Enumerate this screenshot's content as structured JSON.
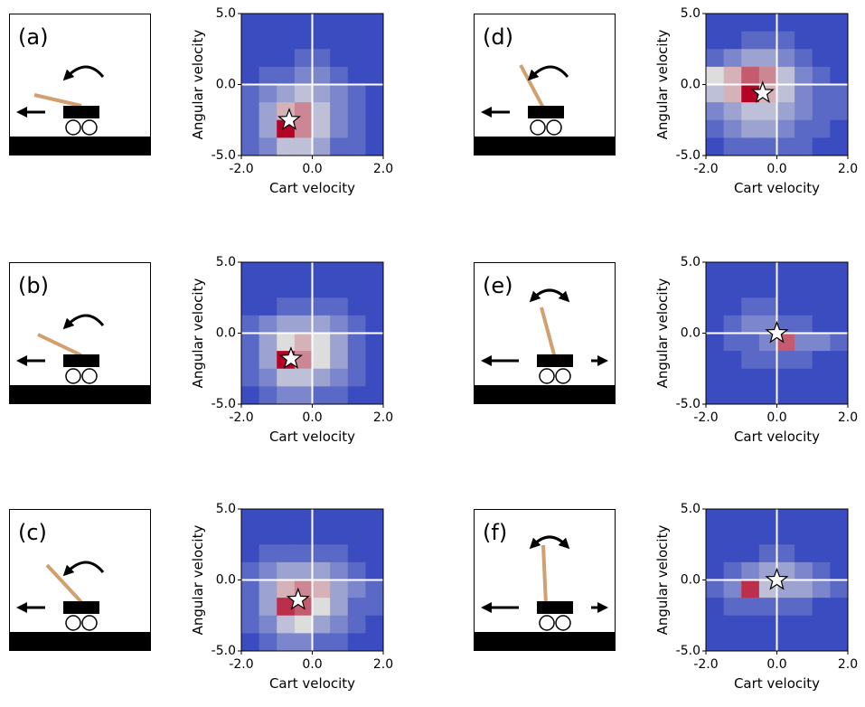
{
  "chart_data": [
    {
      "type": "heatmap",
      "panel_label": "(a)",
      "xlabel": "Cart velocity",
      "ylabel": "Angular velocity",
      "xlim": [
        -2,
        2
      ],
      "ylim": [
        -5,
        5
      ],
      "xticks": [
        {
          "value": -2,
          "label": "-2.0"
        },
        {
          "value": 0,
          "label": "0.0"
        },
        {
          "value": 2,
          "label": "2.0"
        }
      ],
      "yticks": [
        {
          "value": -5,
          "label": "-5.0"
        },
        {
          "value": 0,
          "label": "0.0"
        },
        {
          "value": 5,
          "label": "5.0"
        }
      ],
      "zlim": [
        0,
        10
      ],
      "colormap": [
        "#3b4cc0",
        "#dddddd",
        "#b40426"
      ],
      "z": [
        [
          0,
          0,
          0,
          0,
          0,
          0,
          0,
          0
        ],
        [
          0,
          0,
          0,
          0,
          0,
          0,
          0,
          0
        ],
        [
          0,
          0,
          0,
          1,
          1,
          0,
          0,
          0
        ],
        [
          0,
          1,
          1,
          2,
          2,
          1,
          0,
          0
        ],
        [
          1,
          2,
          3,
          4,
          3,
          2,
          1,
          0
        ],
        [
          1,
          3,
          6,
          7,
          4,
          2,
          1,
          0
        ],
        [
          1,
          3,
          10,
          7,
          4,
          2,
          1,
          0
        ],
        [
          1,
          2,
          4,
          4,
          3,
          1,
          1,
          0
        ]
      ],
      "marker": {
        "x": -0.65,
        "y": -2.5
      }
    },
    {
      "type": "heatmap",
      "panel_label": "(b)",
      "xlabel": "Cart velocity",
      "ylabel": "Angular velocity",
      "xlim": [
        -2,
        2
      ],
      "ylim": [
        -5,
        5
      ],
      "xticks": [
        {
          "value": -2,
          "label": "-2.0"
        },
        {
          "value": 0,
          "label": "0.0"
        },
        {
          "value": 2,
          "label": "2.0"
        }
      ],
      "yticks": [
        {
          "value": -5,
          "label": "-5.0"
        },
        {
          "value": 0,
          "label": "0.0"
        },
        {
          "value": 5,
          "label": "5.0"
        }
      ],
      "zlim": [
        0,
        10
      ],
      "colormap": [
        "#3b4cc0",
        "#dddddd",
        "#b40426"
      ],
      "z": [
        [
          0,
          0,
          0,
          0,
          0,
          0,
          0,
          0
        ],
        [
          0,
          0,
          0,
          0,
          0,
          0,
          0,
          0
        ],
        [
          0,
          0,
          1,
          1,
          1,
          1,
          0,
          0
        ],
        [
          1,
          2,
          3,
          3,
          3,
          2,
          1,
          0
        ],
        [
          1,
          3,
          5,
          6,
          5,
          3,
          1,
          0
        ],
        [
          1,
          3,
          10,
          7,
          5,
          3,
          1,
          0
        ],
        [
          1,
          2,
          4,
          4,
          3,
          2,
          1,
          0
        ],
        [
          0,
          1,
          2,
          2,
          1,
          1,
          0,
          0
        ]
      ],
      "marker": {
        "x": -0.6,
        "y": -1.8
      }
    },
    {
      "type": "heatmap",
      "panel_label": "(c)",
      "xlabel": "Cart velocity",
      "ylabel": "Angular velocity",
      "xlim": [
        -2,
        2
      ],
      "ylim": [
        -5,
        5
      ],
      "xticks": [
        {
          "value": -2,
          "label": "-2.0"
        },
        {
          "value": 0,
          "label": "0.0"
        },
        {
          "value": 2,
          "label": "2.0"
        }
      ],
      "yticks": [
        {
          "value": -5,
          "label": "-5.0"
        },
        {
          "value": 0,
          "label": "0.0"
        },
        {
          "value": 5,
          "label": "5.0"
        }
      ],
      "zlim": [
        0,
        10
      ],
      "colormap": [
        "#3b4cc0",
        "#dddddd",
        "#b40426"
      ],
      "z": [
        [
          0,
          0,
          0,
          0,
          0,
          0,
          0,
          0
        ],
        [
          0,
          0,
          0,
          0,
          0,
          0,
          0,
          0
        ],
        [
          0,
          1,
          1,
          1,
          1,
          1,
          0,
          0
        ],
        [
          1,
          2,
          3,
          3,
          3,
          2,
          1,
          0
        ],
        [
          1,
          3,
          6,
          7,
          6,
          3,
          2,
          1
        ],
        [
          1,
          3,
          9,
          8,
          5,
          3,
          1,
          1
        ],
        [
          1,
          2,
          4,
          5,
          3,
          2,
          1,
          0
        ],
        [
          0,
          1,
          2,
          2,
          1,
          1,
          0,
          0
        ]
      ],
      "marker": {
        "x": -0.4,
        "y": -1.4
      }
    },
    {
      "type": "heatmap",
      "panel_label": "(d)",
      "xlabel": "Cart velocity",
      "ylabel": "Angular velocity",
      "xlim": [
        -2,
        2
      ],
      "ylim": [
        -5,
        5
      ],
      "xticks": [
        {
          "value": -2,
          "label": "-2.0"
        },
        {
          "value": 0,
          "label": "0.0"
        },
        {
          "value": 2,
          "label": "2.0"
        }
      ],
      "yticks": [
        {
          "value": -5,
          "label": "-5.0"
        },
        {
          "value": 0,
          "label": "0.0"
        },
        {
          "value": 5,
          "label": "5.0"
        }
      ],
      "zlim": [
        0,
        10
      ],
      "colormap": [
        "#3b4cc0",
        "#dddddd",
        "#b40426"
      ],
      "z": [
        [
          0,
          0,
          0,
          0,
          0,
          0,
          0,
          0
        ],
        [
          0,
          0,
          1,
          1,
          1,
          0,
          0,
          0
        ],
        [
          1,
          2,
          3,
          3,
          2,
          1,
          0,
          0
        ],
        [
          5,
          6,
          8,
          7,
          4,
          2,
          1,
          0
        ],
        [
          4,
          6,
          10,
          6,
          4,
          2,
          1,
          1
        ],
        [
          2,
          3,
          4,
          4,
          3,
          2,
          1,
          1
        ],
        [
          1,
          2,
          3,
          3,
          2,
          1,
          1,
          0
        ],
        [
          0,
          1,
          1,
          1,
          1,
          1,
          0,
          0
        ]
      ],
      "marker": {
        "x": -0.4,
        "y": -0.6
      }
    },
    {
      "type": "heatmap",
      "panel_label": "(e)",
      "xlabel": "Cart velocity",
      "ylabel": "Angular velocity",
      "xlim": [
        -2,
        2
      ],
      "ylim": [
        -5,
        5
      ],
      "xticks": [
        {
          "value": -2,
          "label": "-2.0"
        },
        {
          "value": 0,
          "label": "0.0"
        },
        {
          "value": 2,
          "label": "2.0"
        }
      ],
      "yticks": [
        {
          "value": -5,
          "label": "-5.0"
        },
        {
          "value": 0,
          "label": "0.0"
        },
        {
          "value": 5,
          "label": "5.0"
        }
      ],
      "zlim": [
        0,
        10
      ],
      "colormap": [
        "#3b4cc0",
        "#dddddd",
        "#b40426"
      ],
      "z": [
        [
          0,
          0,
          0,
          0,
          0,
          0,
          0,
          0
        ],
        [
          0,
          0,
          0,
          0,
          0,
          0,
          0,
          0
        ],
        [
          0,
          0,
          1,
          1,
          0,
          0,
          0,
          0
        ],
        [
          0,
          1,
          2,
          2,
          1,
          1,
          0,
          0
        ],
        [
          0,
          1,
          1,
          2,
          8,
          2,
          2,
          1
        ],
        [
          0,
          0,
          1,
          1,
          1,
          1,
          0,
          0
        ],
        [
          0,
          0,
          0,
          0,
          0,
          0,
          0,
          0
        ],
        [
          0,
          0,
          0,
          0,
          0,
          0,
          0,
          0
        ]
      ],
      "marker": {
        "x": 0,
        "y": 0
      }
    },
    {
      "type": "heatmap",
      "panel_label": "(f)",
      "xlabel": "Cart velocity",
      "ylabel": "Angular velocity",
      "xlim": [
        -2,
        2
      ],
      "ylim": [
        -5,
        5
      ],
      "xticks": [
        {
          "value": -2,
          "label": "-2.0"
        },
        {
          "value": 0,
          "label": "0.0"
        },
        {
          "value": 2,
          "label": "2.0"
        }
      ],
      "yticks": [
        {
          "value": -5,
          "label": "-5.0"
        },
        {
          "value": 0,
          "label": "0.0"
        },
        {
          "value": 5,
          "label": "5.0"
        }
      ],
      "zlim": [
        0,
        10
      ],
      "colormap": [
        "#3b4cc0",
        "#dddddd",
        "#b40426"
      ],
      "z": [
        [
          0,
          0,
          0,
          0,
          0,
          0,
          0,
          0
        ],
        [
          0,
          0,
          0,
          0,
          0,
          0,
          0,
          0
        ],
        [
          0,
          0,
          0,
          1,
          1,
          0,
          0,
          0
        ],
        [
          0,
          1,
          2,
          3,
          3,
          2,
          1,
          0
        ],
        [
          1,
          2,
          9,
          4,
          3,
          3,
          2,
          1
        ],
        [
          0,
          1,
          1,
          1,
          1,
          1,
          0,
          0
        ],
        [
          0,
          0,
          0,
          0,
          0,
          0,
          0,
          0
        ],
        [
          0,
          0,
          0,
          0,
          0,
          0,
          0,
          0
        ]
      ],
      "marker": {
        "x": 0,
        "y": 0
      }
    }
  ]
}
